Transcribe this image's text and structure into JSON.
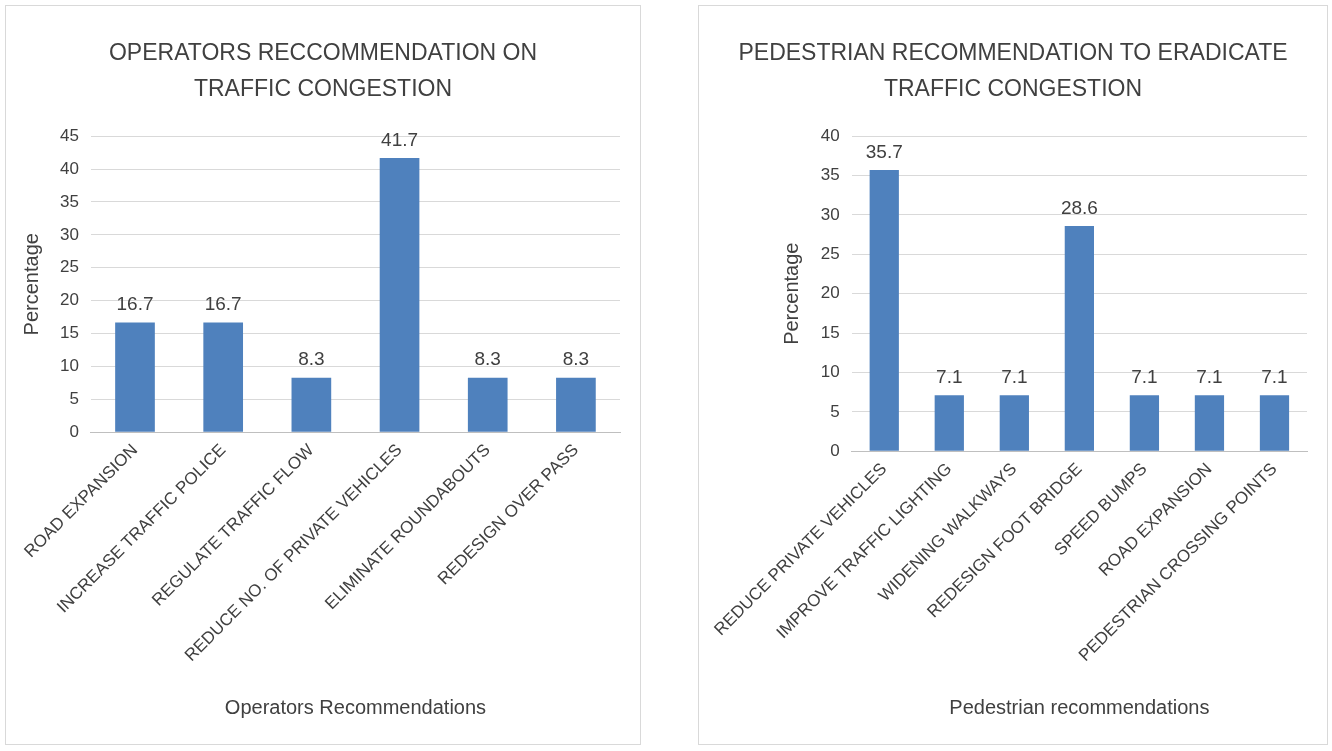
{
  "chart_data": [
    {
      "type": "bar",
      "title": "OPERATORS RECCOMMENDATION ON TRAFFIC CONGESTION",
      "xlabel": "Operators Recommendations",
      "ylabel": "Percentage",
      "categories": [
        "ROAD EXPANSION",
        "INCREASE TRAFFIC POLICE",
        "REGULATE TRAFFIC FLOW",
        "REDUCE NO. OF PRIVATE VEHICLES",
        "ELIMINATE ROUNDABOUTS",
        "REDESIGN OVER PASS"
      ],
      "values": [
        16.7,
        16.7,
        8.3,
        41.7,
        8.3,
        8.3
      ],
      "color": "#4f81bd",
      "ylim": [
        0,
        45
      ],
      "yticks": [
        0,
        5,
        10,
        15,
        20,
        25,
        30,
        35,
        40,
        45
      ],
      "grid": "y",
      "data_labels": true,
      "legend": false
    },
    {
      "type": "bar",
      "title": "PEDESTRIAN RECOMMENDATION TO ERADICATE TRAFFIC CONGESTION",
      "xlabel": "Pedestrian recommendations",
      "ylabel": "Percentage",
      "categories": [
        "REDUCE PRIVATE VEHICLES",
        "IMPROVE TRAFFIC LIGHTING",
        "WIDENING WALKWAYS",
        "REDESIGN FOOT BRIDGE",
        "SPEED BUMPS",
        "ROAD EXPANSION",
        "PEDESTRIAN CROSSING POINTS"
      ],
      "values": [
        35.7,
        7.1,
        7.1,
        28.6,
        7.1,
        7.1,
        7.1
      ],
      "color": "#4f81bd",
      "ylim": [
        0,
        40
      ],
      "yticks": [
        0,
        5,
        10,
        15,
        20,
        25,
        30,
        35,
        40
      ],
      "grid": "y",
      "data_labels": true,
      "legend": false
    }
  ]
}
